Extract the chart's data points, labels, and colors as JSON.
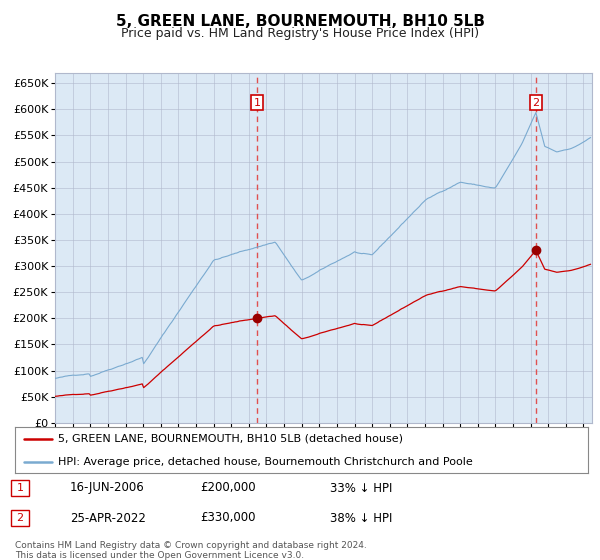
{
  "title": "5, GREEN LANE, BOURNEMOUTH, BH10 5LB",
  "subtitle": "Price paid vs. HM Land Registry's House Price Index (HPI)",
  "legend_line1": "5, GREEN LANE, BOURNEMOUTH, BH10 5LB (detached house)",
  "legend_line2": "HPI: Average price, detached house, Bournemouth Christchurch and Poole",
  "transaction1_date": "16-JUN-2006",
  "transaction1_price": "£200,000",
  "transaction1_pct": "33% ↓ HPI",
  "transaction1_year": 2006.46,
  "transaction1_value": 200000,
  "transaction2_date": "25-APR-2022",
  "transaction2_price": "£330,000",
  "transaction2_pct": "38% ↓ HPI",
  "transaction2_year": 2022.31,
  "transaction2_value": 330000,
  "footer_line1": "Contains HM Land Registry data © Crown copyright and database right 2024.",
  "footer_line2": "This data is licensed under the Open Government Licence v3.0.",
  "plot_bg_color": "#dce9f5",
  "grid_color": "#b0b8cc",
  "hpi_color": "#7aaad0",
  "sale_color": "#cc0000",
  "marker_color": "#990000",
  "dashed_color": "#e05050",
  "ylim_min": 0,
  "ylim_max": 670000,
  "ytick_step": 50000,
  "xmin": 1995,
  "xmax": 2025.5
}
